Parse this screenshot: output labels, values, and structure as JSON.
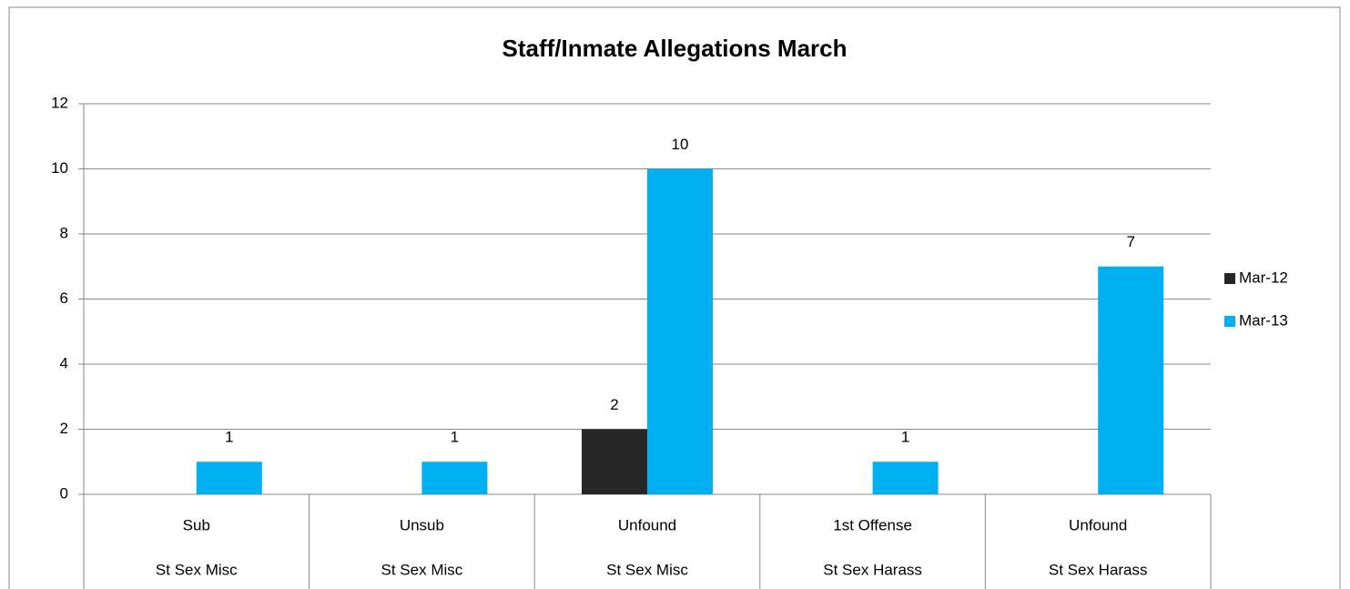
{
  "chart_data": {
    "type": "bar",
    "title": "Staff/Inmate Allegations March",
    "categories": [
      "Sub",
      "Unsub",
      "Unfound",
      "1st Offense",
      "Unfound"
    ],
    "category_groups": [
      "St Sex Misc",
      "St Sex Misc",
      "St Sex Misc",
      "St Sex Harass",
      "St Sex Harass"
    ],
    "series": [
      {
        "name": "Mar-12",
        "color": "#262626",
        "values": [
          null,
          null,
          2,
          null,
          null
        ]
      },
      {
        "name": "Mar-13",
        "color": "#00b0f0",
        "values": [
          1,
          1,
          10,
          1,
          7
        ]
      }
    ],
    "ylim": [
      0,
      12
    ],
    "yticks": [
      0,
      2,
      4,
      6,
      8,
      10,
      12
    ],
    "grid": true,
    "legend": "right"
  }
}
